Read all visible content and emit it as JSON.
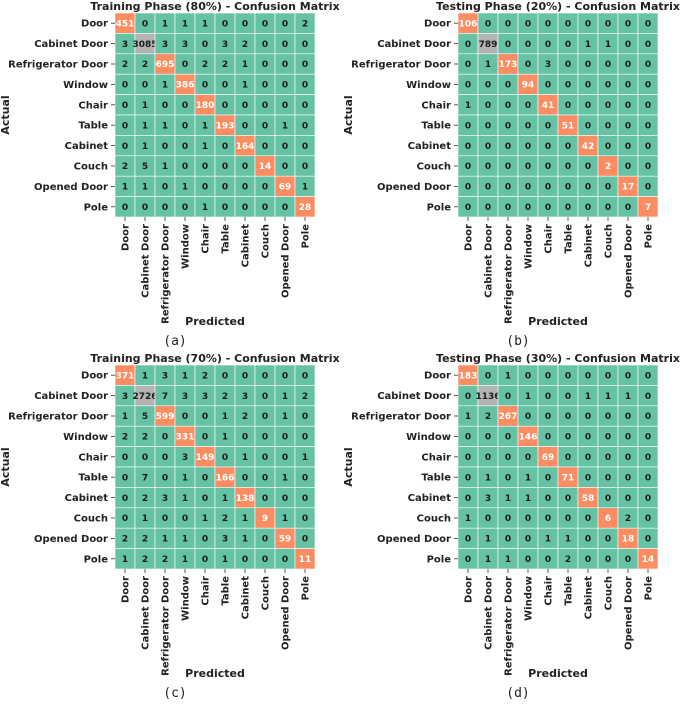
{
  "colors": {
    "off_diagonal": "#66c2a5",
    "diagonal_primary": "#fc8d62",
    "diagonal_secondary": "#b3b3b3",
    "grid": "#ffffff"
  },
  "chart_data": [
    {
      "type": "heatmap",
      "title": "Training Phase (80%) - Confusion Matrix",
      "xlabel": "Predicted",
      "ylabel": "Actual",
      "sublabel": "(a)",
      "rows": [
        "Door",
        "Cabinet Door",
        "Refrigerator Door",
        "Window",
        "Chair",
        "Table",
        "Cabinet",
        "Couch",
        "Opened Door",
        "Pole"
      ],
      "cols": [
        "Door",
        "Cabinet Door",
        "Refrigerator Door",
        "Window",
        "Chair",
        "Table",
        "Cabinet",
        "Couch",
        "Opened Door",
        "Pole"
      ],
      "matrix": [
        [
          451,
          0,
          1,
          1,
          1,
          0,
          0,
          0,
          0,
          2
        ],
        [
          3,
          3085,
          3,
          3,
          0,
          3,
          2,
          0,
          0,
          0
        ],
        [
          2,
          2,
          695,
          0,
          2,
          2,
          1,
          0,
          0,
          0
        ],
        [
          0,
          0,
          1,
          386,
          0,
          0,
          1,
          0,
          0,
          0
        ],
        [
          0,
          1,
          0,
          0,
          180,
          0,
          0,
          0,
          0,
          0
        ],
        [
          0,
          1,
          1,
          0,
          1,
          193,
          0,
          0,
          1,
          0
        ],
        [
          0,
          1,
          0,
          0,
          1,
          0,
          164,
          0,
          0,
          0
        ],
        [
          2,
          5,
          1,
          0,
          0,
          0,
          0,
          14,
          0,
          0
        ],
        [
          1,
          1,
          0,
          1,
          0,
          0,
          0,
          0,
          69,
          1
        ],
        [
          0,
          0,
          0,
          0,
          1,
          0,
          0,
          0,
          0,
          28
        ]
      ]
    },
    {
      "type": "heatmap",
      "title": "Testing Phase (20%) - Confusion Matrix",
      "xlabel": "Predicted",
      "ylabel": "Actual",
      "sublabel": "(b)",
      "rows": [
        "Door",
        "Cabinet Door",
        "Refrigerator Door",
        "Window",
        "Chair",
        "Table",
        "Cabinet",
        "Couch",
        "Opened Door",
        "Pole"
      ],
      "cols": [
        "Door",
        "Cabinet Door",
        "Refrigerator Door",
        "Window",
        "Chair",
        "Table",
        "Cabinet",
        "Couch",
        "Opened Door",
        "Pole"
      ],
      "matrix": [
        [
          106,
          0,
          0,
          0,
          0,
          0,
          0,
          0,
          0,
          0
        ],
        [
          0,
          789,
          0,
          0,
          0,
          0,
          1,
          1,
          0,
          0
        ],
        [
          0,
          1,
          173,
          0,
          3,
          0,
          0,
          0,
          0,
          0
        ],
        [
          0,
          0,
          0,
          94,
          0,
          0,
          0,
          0,
          0,
          0
        ],
        [
          1,
          0,
          0,
          0,
          41,
          0,
          0,
          0,
          0,
          0
        ],
        [
          0,
          0,
          0,
          0,
          0,
          51,
          0,
          0,
          0,
          0
        ],
        [
          0,
          0,
          0,
          0,
          0,
          0,
          42,
          0,
          0,
          0
        ],
        [
          0,
          0,
          0,
          0,
          0,
          0,
          0,
          2,
          0,
          0
        ],
        [
          0,
          0,
          0,
          0,
          0,
          0,
          0,
          0,
          17,
          0
        ],
        [
          0,
          0,
          0,
          0,
          0,
          0,
          0,
          0,
          0,
          7
        ]
      ]
    },
    {
      "type": "heatmap",
      "title": "Training Phase (70%) - Confusion Matrix",
      "xlabel": "Predicted",
      "ylabel": "Actual",
      "sublabel": "(c)",
      "rows": [
        "Door",
        "Cabinet Door",
        "Refrigerator Door",
        "Window",
        "Chair",
        "Table",
        "Cabinet",
        "Couch",
        "Opened Door",
        "Pole"
      ],
      "cols": [
        "Door",
        "Cabinet Door",
        "Refrigerator Door",
        "Window",
        "Chair",
        "Table",
        "Cabinet",
        "Couch",
        "Opened Door",
        "Pole"
      ],
      "matrix": [
        [
          371,
          1,
          3,
          1,
          2,
          0,
          0,
          0,
          0,
          0
        ],
        [
          3,
          2726,
          7,
          3,
          3,
          2,
          3,
          0,
          1,
          2
        ],
        [
          1,
          5,
          599,
          0,
          0,
          1,
          2,
          0,
          1,
          0
        ],
        [
          2,
          2,
          0,
          331,
          0,
          1,
          0,
          0,
          0,
          0
        ],
        [
          0,
          0,
          0,
          3,
          149,
          0,
          1,
          0,
          0,
          1
        ],
        [
          0,
          7,
          0,
          1,
          0,
          166,
          0,
          0,
          1,
          0
        ],
        [
          0,
          2,
          3,
          1,
          0,
          1,
          138,
          0,
          0,
          0
        ],
        [
          0,
          1,
          0,
          0,
          1,
          2,
          1,
          9,
          1,
          0
        ],
        [
          2,
          2,
          1,
          1,
          0,
          3,
          1,
          0,
          59,
          0
        ],
        [
          1,
          2,
          2,
          1,
          0,
          1,
          0,
          0,
          0,
          11
        ]
      ]
    },
    {
      "type": "heatmap",
      "title": "Testing Phase (30%) - Confusion Matrix",
      "xlabel": "Predicted",
      "ylabel": "Actual",
      "sublabel": "(d)",
      "rows": [
        "Door",
        "Cabinet Door",
        "Refrigerator Door",
        "Window",
        "Chair",
        "Table",
        "Cabinet",
        "Couch",
        "Opened Door",
        "Pole"
      ],
      "cols": [
        "Door",
        "Cabinet Door",
        "Refrigerator Door",
        "Window",
        "Chair",
        "Table",
        "Cabinet",
        "Couch",
        "Opened Door",
        "Pole"
      ],
      "matrix": [
        [
          183,
          0,
          1,
          0,
          0,
          0,
          0,
          0,
          0,
          0
        ],
        [
          0,
          1136,
          0,
          1,
          0,
          0,
          1,
          1,
          1,
          0
        ],
        [
          1,
          2,
          267,
          0,
          0,
          0,
          0,
          0,
          0,
          0
        ],
        [
          0,
          0,
          0,
          146,
          0,
          0,
          0,
          0,
          0,
          0
        ],
        [
          0,
          0,
          0,
          0,
          69,
          0,
          0,
          0,
          0,
          0
        ],
        [
          0,
          1,
          0,
          1,
          0,
          71,
          0,
          0,
          0,
          0
        ],
        [
          0,
          3,
          1,
          1,
          0,
          0,
          58,
          0,
          0,
          0
        ],
        [
          1,
          0,
          0,
          0,
          0,
          0,
          0,
          6,
          2,
          0
        ],
        [
          0,
          1,
          0,
          0,
          1,
          1,
          0,
          0,
          18,
          0
        ],
        [
          0,
          1,
          1,
          0,
          0,
          2,
          0,
          0,
          0,
          14
        ]
      ]
    }
  ]
}
